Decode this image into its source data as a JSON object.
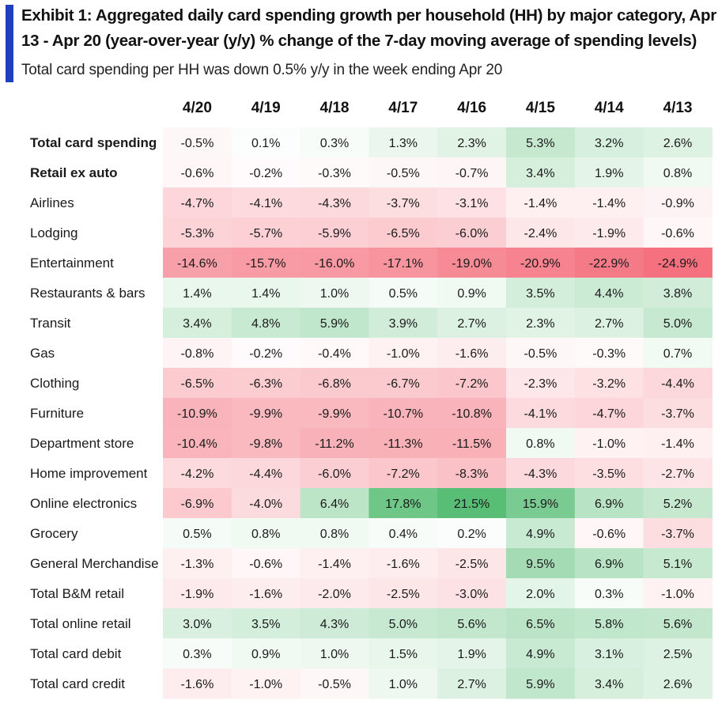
{
  "header": {
    "title": "Exhibit 1: Aggregated daily card spending growth per household (HH) by major category, Apr 13 - Apr 20 (year-over-year (y/y) % change of the 7-day moving average of spending levels)",
    "subtitle": "Total card spending per HH was down 0.5% y/y in the week ending Apr 20"
  },
  "colors": {
    "accent": "#1f3fbf",
    "negative_max": "#f46a78",
    "positive_max": "#4fba6e",
    "neutral": "#ffffff"
  },
  "chart_data": {
    "type": "heatmap",
    "title": "Exhibit 1: Aggregated daily card spending growth per household (HH) by major category, Apr 13 - Apr 20 (year-over-year (y/y) % change of the 7-day moving average of spending levels)",
    "value_unit": "%",
    "columns": [
      "4/20",
      "4/19",
      "4/18",
      "4/17",
      "4/16",
      "4/15",
      "4/14",
      "4/13"
    ],
    "rows": [
      {
        "label": "Total card spending",
        "bold": true,
        "values": [
          -0.5,
          0.1,
          0.3,
          1.3,
          2.3,
          5.3,
          3.2,
          2.6
        ]
      },
      {
        "label": "Retail ex auto",
        "bold": true,
        "values": [
          -0.6,
          -0.2,
          -0.3,
          -0.5,
          -0.7,
          3.4,
          1.9,
          0.8
        ]
      },
      {
        "label": "Airlines",
        "bold": false,
        "values": [
          -4.7,
          -4.1,
          -4.3,
          -3.7,
          -3.1,
          -1.4,
          -1.4,
          -0.9
        ]
      },
      {
        "label": "Lodging",
        "bold": false,
        "values": [
          -5.3,
          -5.7,
          -5.9,
          -6.5,
          -6.0,
          -2.4,
          -1.9,
          -0.6
        ]
      },
      {
        "label": "Entertainment",
        "bold": false,
        "values": [
          -14.6,
          -15.7,
          -16.0,
          -17.1,
          -19.0,
          -20.9,
          -22.9,
          -24.9
        ]
      },
      {
        "label": "Restaurants & bars",
        "bold": false,
        "values": [
          1.4,
          1.4,
          1.0,
          0.5,
          0.9,
          3.5,
          4.4,
          3.8
        ]
      },
      {
        "label": "Transit",
        "bold": false,
        "values": [
          3.4,
          4.8,
          5.9,
          3.9,
          2.7,
          2.3,
          2.7,
          5.0
        ]
      },
      {
        "label": "Gas",
        "bold": false,
        "values": [
          -0.8,
          -0.2,
          -0.4,
          -1.0,
          -1.6,
          -0.5,
          -0.3,
          0.7
        ]
      },
      {
        "label": "Clothing",
        "bold": false,
        "values": [
          -6.5,
          -6.3,
          -6.8,
          -6.7,
          -7.2,
          -2.3,
          -3.2,
          -4.4
        ]
      },
      {
        "label": "Furniture",
        "bold": false,
        "values": [
          -10.9,
          -9.9,
          -9.9,
          -10.7,
          -10.8,
          -4.1,
          -4.7,
          -3.7
        ]
      },
      {
        "label": "Department store",
        "bold": false,
        "values": [
          -10.4,
          -9.8,
          -11.2,
          -11.3,
          -11.5,
          0.8,
          -1.0,
          -1.4
        ]
      },
      {
        "label": "Home improvement",
        "bold": false,
        "values": [
          -4.2,
          -4.4,
          -6.0,
          -7.2,
          -8.3,
          -4.3,
          -3.5,
          -2.7
        ]
      },
      {
        "label": "Online electronics",
        "bold": false,
        "values": [
          -6.9,
          -4.0,
          6.4,
          17.8,
          21.5,
          15.9,
          6.9,
          5.2
        ]
      },
      {
        "label": "Grocery",
        "bold": false,
        "values": [
          0.5,
          0.8,
          0.8,
          0.4,
          0.2,
          4.9,
          -0.6,
          -3.7
        ]
      },
      {
        "label": "General Merchandise",
        "bold": false,
        "values": [
          -1.3,
          -0.6,
          -1.4,
          -1.6,
          -2.5,
          9.5,
          6.9,
          5.1
        ]
      },
      {
        "label": "Total B&M retail",
        "bold": false,
        "values": [
          -1.9,
          -1.6,
          -2.0,
          -2.5,
          -3.0,
          2.0,
          0.3,
          -1.0
        ]
      },
      {
        "label": "Total online retail",
        "bold": false,
        "values": [
          3.0,
          3.5,
          4.3,
          5.0,
          5.6,
          6.5,
          5.8,
          5.6
        ]
      },
      {
        "label": "Total card debit",
        "bold": false,
        "values": [
          0.3,
          0.9,
          1.0,
          1.5,
          1.9,
          4.9,
          3.1,
          2.5
        ]
      },
      {
        "label": "Total card credit",
        "bold": false,
        "values": [
          -1.6,
          -1.0,
          -0.5,
          1.0,
          2.7,
          5.9,
          3.4,
          2.6
        ]
      }
    ],
    "color_scale": {
      "min": -24.9,
      "mid": 0,
      "max": 21.5
    }
  }
}
